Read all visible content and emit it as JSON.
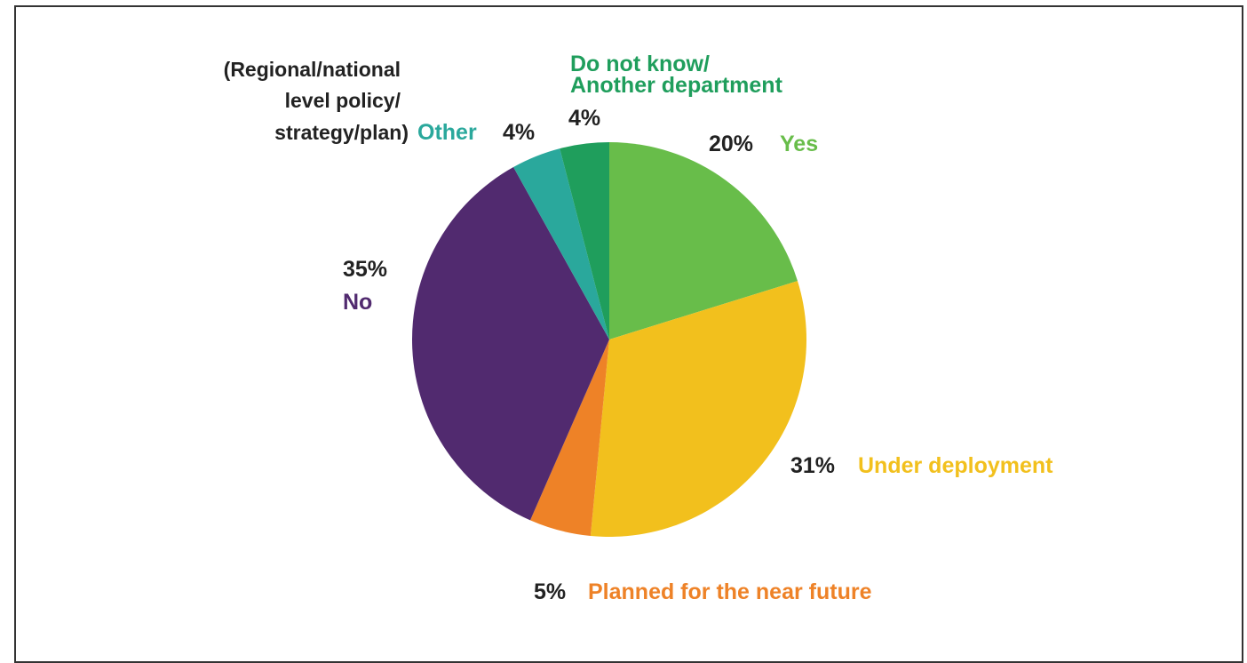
{
  "chart_data": {
    "type": "pie",
    "slices": [
      {
        "label": "Yes",
        "value": 20,
        "value_label": "20%",
        "color": "#68bd4a"
      },
      {
        "label": "Under deployment",
        "value": 31,
        "value_label": "31%",
        "color": "#f2c01d"
      },
      {
        "label": "Planned for the near future",
        "value": 5,
        "value_label": "5%",
        "color": "#ee8227"
      },
      {
        "label": "No",
        "value": 35,
        "value_label": "35%",
        "color": "#512a6f"
      },
      {
        "label": "Other",
        "value": 4,
        "value_label": "4%",
        "color": "#2aa89c",
        "note_lines": [
          "(Regional/national",
          "level policy/",
          "strategy/plan)"
        ]
      },
      {
        "label_lines": [
          "Do not know/",
          "Another department"
        ],
        "value": 4,
        "value_label": "4%",
        "color": "#1f9e5c"
      }
    ],
    "value_text_color": "#222222"
  }
}
